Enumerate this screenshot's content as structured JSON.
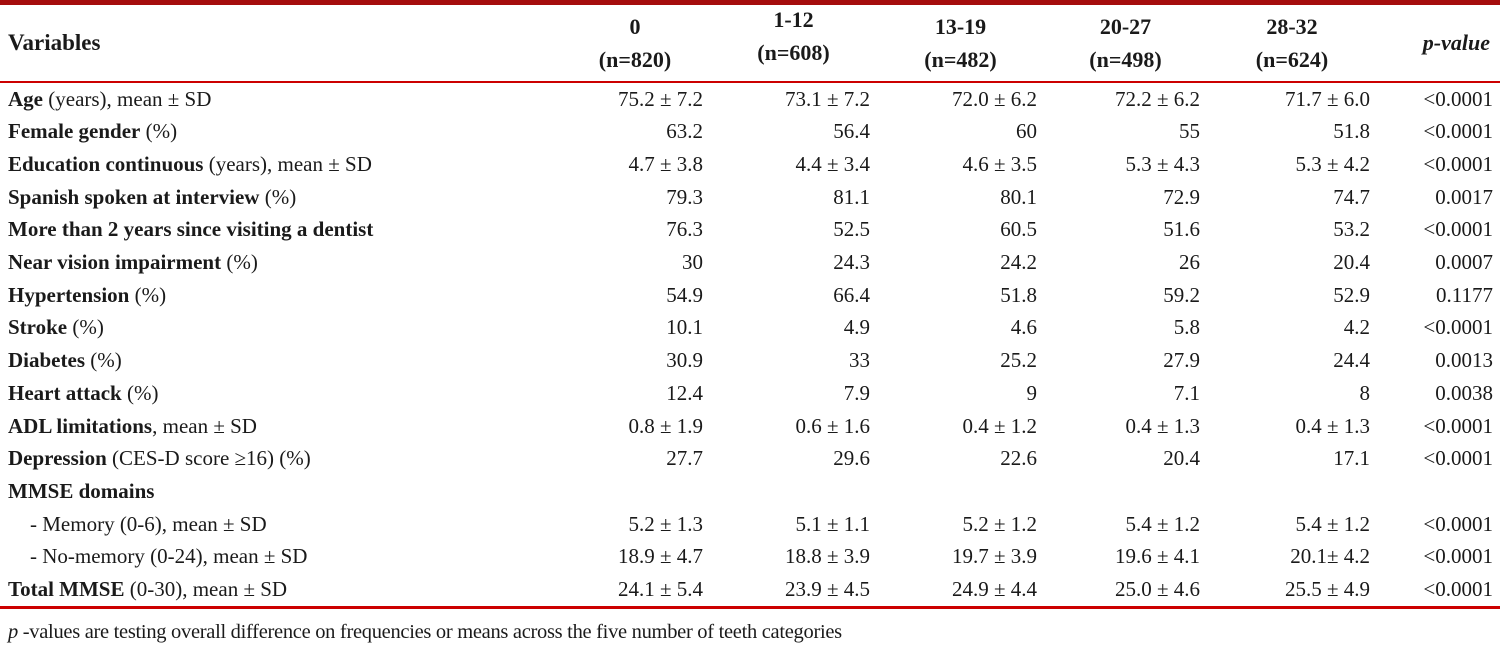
{
  "colors": {
    "top_border": "#a50d0d",
    "rule": "#cc0000"
  },
  "table": {
    "header_variables": "Variables",
    "header_pvalue": "p-value",
    "columns": [
      {
        "line1": "0",
        "line2": "(n=820)"
      },
      {
        "line1": "1-12",
        "line2": "(n=608)"
      },
      {
        "line1": "13-19",
        "line2": "(n=482)"
      },
      {
        "line1": "20-27",
        "line2": "(n=498)"
      },
      {
        "line1": "28-32",
        "line2": "(n=624)"
      }
    ],
    "rows": [
      {
        "bold": "Age",
        "rest": " (years), mean ± SD",
        "indent": false,
        "values": [
          "75.2 ± 7.2",
          "73.1 ± 7.2",
          "72.0 ± 6.2",
          "72.2 ± 6.2",
          "71.7 ± 6.0"
        ],
        "p": "<0.0001"
      },
      {
        "bold": "Female gender",
        "rest": " (%)",
        "indent": false,
        "values": [
          "63.2",
          "56.4",
          "60",
          "55",
          "51.8"
        ],
        "p": "<0.0001"
      },
      {
        "bold": "Education continuous",
        "rest": " (years), mean ± SD",
        "indent": false,
        "values": [
          "4.7 ± 3.8",
          "4.4 ± 3.4",
          "4.6 ± 3.5",
          "5.3 ± 4.3",
          "5.3 ± 4.2"
        ],
        "p": "<0.0001"
      },
      {
        "bold": "Spanish spoken at interview",
        "rest": " (%)",
        "indent": false,
        "values": [
          "79.3",
          "81.1",
          "80.1",
          "72.9",
          "74.7"
        ],
        "p": "0.0017"
      },
      {
        "bold": "More than 2 years since visiting a dentist",
        "rest": "",
        "indent": false,
        "values": [
          "76.3",
          "52.5",
          "60.5",
          "51.6",
          "53.2"
        ],
        "p": "<0.0001"
      },
      {
        "bold": "Near vision impairment",
        "rest": " (%)",
        "indent": false,
        "values": [
          "30",
          "24.3",
          "24.2",
          "26",
          "20.4"
        ],
        "p": "0.0007"
      },
      {
        "bold": "Hypertension",
        "rest": " (%)",
        "indent": false,
        "values": [
          "54.9",
          "66.4",
          "51.8",
          "59.2",
          "52.9"
        ],
        "p": "0.1177"
      },
      {
        "bold": "Stroke",
        "rest": " (%)",
        "indent": false,
        "values": [
          "10.1",
          "4.9",
          "4.6",
          "5.8",
          "4.2"
        ],
        "p": "<0.0001"
      },
      {
        "bold": "Diabetes",
        "rest": " (%)",
        "indent": false,
        "values": [
          "30.9",
          "33",
          "25.2",
          "27.9",
          "24.4"
        ],
        "p": "0.0013"
      },
      {
        "bold": "Heart attack",
        "rest": " (%)",
        "indent": false,
        "values": [
          "12.4",
          "7.9",
          "9",
          "7.1",
          "8"
        ],
        "p": "0.0038"
      },
      {
        "bold": "ADL limitations",
        "rest": ", mean ± SD",
        "indent": false,
        "values": [
          "0.8 ± 1.9",
          "0.6 ± 1.6",
          "0.4 ± 1.2",
          "0.4 ± 1.3",
          "0.4 ± 1.3"
        ],
        "p": "<0.0001"
      },
      {
        "bold": "Depression",
        "rest": " (CES-D score ≥16) (%)",
        "indent": false,
        "values": [
          "27.7",
          "29.6",
          "22.6",
          "20.4",
          "17.1"
        ],
        "p": "<0.0001"
      },
      {
        "bold": "MMSE domains",
        "rest": "",
        "indent": false,
        "values": [
          "",
          "",
          "",
          "",
          ""
        ],
        "p": ""
      },
      {
        "bold": "",
        "rest": "- Memory (0-6), mean ± SD",
        "indent": true,
        "values": [
          "5.2 ± 1.3",
          "5.1 ± 1.1",
          "5.2 ± 1.2",
          "5.4 ± 1.2",
          "5.4 ± 1.2"
        ],
        "p": "<0.0001"
      },
      {
        "bold": "",
        "rest": "- No-memory (0-24), mean ± SD",
        "indent": true,
        "values": [
          "18.9 ± 4.7",
          "18.8 ± 3.9",
          "19.7 ± 3.9",
          "19.6 ± 4.1",
          "20.1± 4.2"
        ],
        "p": "<0.0001"
      },
      {
        "bold": "Total MMSE",
        "rest": " (0-30), mean ± SD",
        "indent": false,
        "values": [
          "24.1 ± 5.4",
          "23.9 ± 4.5",
          "24.9 ± 4.4",
          "25.0 ± 4.6",
          "25.5 ± 4.9"
        ],
        "p": "<0.0001"
      }
    ],
    "footnote_p": "p",
    "footnote_text": " -values are testing overall difference on frequencies or means across the five number of teeth categories"
  }
}
